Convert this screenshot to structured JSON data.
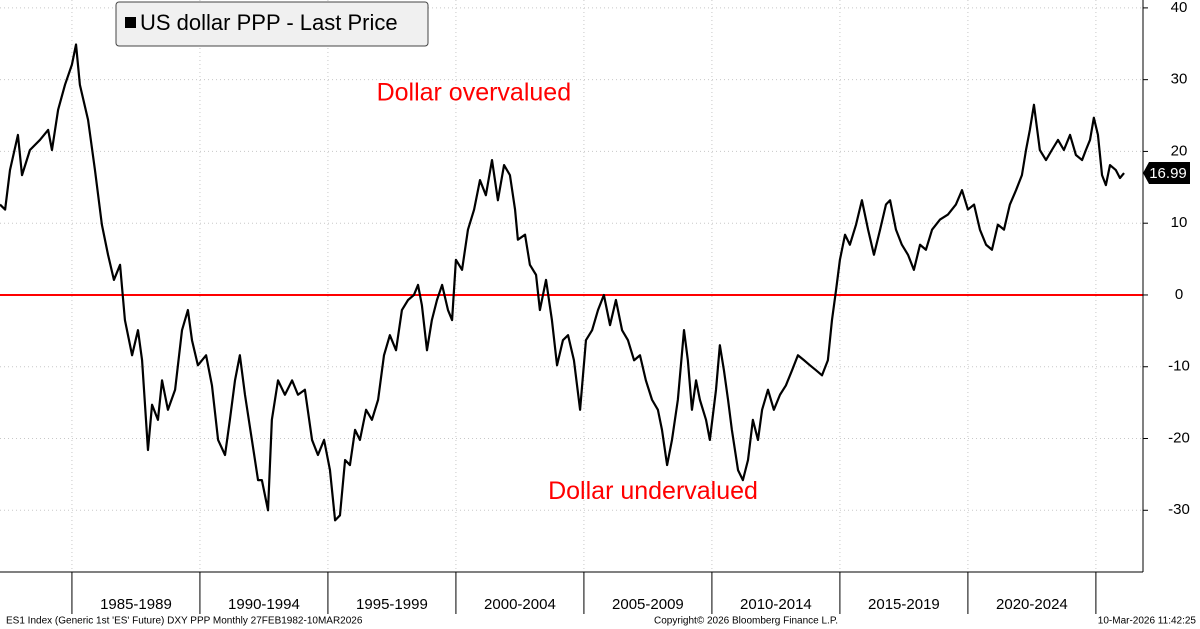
{
  "chart_data": {
    "type": "line",
    "legend_label": "US dollar PPP - Last Price",
    "annotations": [
      {
        "text": "Dollar overvalued",
        "x": 2000.7,
        "y": 28
      },
      {
        "text": "Dollar undervalued",
        "x": 2007.7,
        "y": -27.5
      }
    ],
    "annotation_color": "#ff0000",
    "reference_line": {
      "value": 0,
      "color": "#ff0000"
    },
    "footer": {
      "left": "ES1 Index (Generic 1st 'ES' Future) DXY PPP Monthly 27FEB1982-10MAR2026",
      "center": "Copyright© 2026 Bloomberg Finance L.P.",
      "right": "10-Mar-2026 11:42:25"
    },
    "xlim": [
      1982.19,
      2026.84
    ],
    "xticks": [
      {
        "value": 1985,
        "label": "1985-1989"
      },
      {
        "value": 1990,
        "label": "1990-1994"
      },
      {
        "value": 1995,
        "label": "1995-1999"
      },
      {
        "value": 2000,
        "label": "2000-2004"
      },
      {
        "value": 2005,
        "label": "2005-2009"
      },
      {
        "value": 2010,
        "label": "2010-2014"
      },
      {
        "value": 2015,
        "label": "2015-2019"
      },
      {
        "value": 2020,
        "label": "2020-2024"
      },
      {
        "value": 2025,
        "label": ""
      }
    ],
    "ylim": [
      -38.6,
      41.1
    ],
    "yticks": [
      -30,
      -20,
      -10,
      0,
      10,
      20,
      30,
      40
    ],
    "grid": true,
    "x": [
      1982.19,
      1982.39,
      1982.58,
      1982.89,
      1983.05,
      1983.36,
      1983.75,
      1984.07,
      1984.22,
      1984.46,
      1984.73,
      1985.0,
      1985.16,
      1985.31,
      1985.63,
      1985.9,
      1986.17,
      1986.41,
      1986.64,
      1986.88,
      1987.07,
      1987.35,
      1987.58,
      1987.74,
      1987.97,
      1988.13,
      1988.36,
      1988.52,
      1988.75,
      1989.03,
      1989.3,
      1989.53,
      1989.69,
      1989.92,
      1990.24,
      1990.47,
      1990.71,
      1990.98,
      1991.17,
      1991.37,
      1991.56,
      1991.76,
      1992.03,
      1992.27,
      1992.42,
      1992.66,
      1992.81,
      1993.05,
      1993.32,
      1993.6,
      1993.83,
      1994.1,
      1994.38,
      1994.61,
      1994.85,
      1995.08,
      1995.28,
      1995.47,
      1995.67,
      1995.86,
      1996.06,
      1996.25,
      1996.49,
      1996.72,
      1996.96,
      1997.19,
      1997.42,
      1997.66,
      1997.89,
      1998.13,
      1998.36,
      1998.52,
      1998.67,
      1998.87,
      1999.06,
      1999.26,
      1999.46,
      1999.69,
      1999.85,
      2000.0,
      2000.24,
      2000.47,
      2000.71,
      2000.94,
      2001.17,
      2001.41,
      2001.64,
      2001.88,
      2002.11,
      2002.31,
      2002.42,
      2002.7,
      2002.89,
      2003.13,
      2003.28,
      2003.52,
      2003.75,
      2003.95,
      2004.18,
      2004.38,
      2004.61,
      2004.85,
      2005.08,
      2005.32,
      2005.55,
      2005.78,
      2006.02,
      2006.25,
      2006.49,
      2006.72,
      2006.96,
      2007.19,
      2007.42,
      2007.66,
      2007.89,
      2008.05,
      2008.25,
      2008.44,
      2008.67,
      2008.91,
      2009.06,
      2009.22,
      2009.38,
      2009.53,
      2009.77,
      2009.92,
      2010.16,
      2010.31,
      2010.47,
      2010.63,
      2010.78,
      2011.02,
      2011.21,
      2011.41,
      2011.6,
      2011.8,
      2011.96,
      2012.19,
      2012.42,
      2012.66,
      2012.89,
      2013.13,
      2013.36,
      2013.6,
      2013.83,
      2014.07,
      2014.3,
      2014.53,
      2014.69,
      2014.85,
      2015.0,
      2015.2,
      2015.39,
      2015.63,
      2015.86,
      2016.1,
      2016.33,
      2016.57,
      2016.8,
      2016.96,
      2017.19,
      2017.42,
      2017.66,
      2017.89,
      2018.13,
      2018.36,
      2018.6,
      2018.91,
      2019.22,
      2019.53,
      2019.77,
      2020.0,
      2020.24,
      2020.47,
      2020.71,
      2020.94,
      2021.17,
      2021.41,
      2021.64,
      2021.88,
      2022.11,
      2022.27,
      2022.42,
      2022.58,
      2022.81,
      2023.05,
      2023.28,
      2023.52,
      2023.75,
      2023.99,
      2024.22,
      2024.46,
      2024.61,
      2024.77,
      2024.92,
      2025.08,
      2025.24,
      2025.39,
      2025.55,
      2025.78,
      2025.94,
      2026.1
    ],
    "series": [
      {
        "name": "US dollar PPP",
        "color": "#000000",
        "values": [
          12.6,
          11.9,
          17.4,
          22.3,
          16.7,
          20.2,
          21.6,
          23.0,
          20.2,
          25.8,
          29.3,
          32.1,
          34.9,
          29.3,
          24.4,
          17.4,
          9.8,
          5.6,
          2.1,
          4.2,
          -3.5,
          -8.4,
          -4.9,
          -9.1,
          -21.6,
          -15.3,
          -17.4,
          -11.9,
          -16.0,
          -13.2,
          -4.9,
          -2.1,
          -6.3,
          -9.8,
          -8.4,
          -12.6,
          -20.2,
          -22.3,
          -17.4,
          -11.9,
          -8.4,
          -13.9,
          -20.2,
          -25.8,
          -25.8,
          -30.0,
          -17.4,
          -11.9,
          -13.9,
          -11.9,
          -13.9,
          -13.2,
          -20.2,
          -22.3,
          -20.2,
          -24.4,
          -31.4,
          -30.7,
          -23.0,
          -23.7,
          -18.8,
          -20.2,
          -16.0,
          -17.4,
          -14.6,
          -8.4,
          -5.6,
          -7.7,
          -2.1,
          -0.7,
          0,
          1.4,
          -1.4,
          -7.7,
          -3.5,
          -0.7,
          1.4,
          -2.1,
          -3.5,
          4.9,
          3.5,
          9.1,
          11.9,
          16.0,
          13.9,
          18.8,
          13.2,
          18.1,
          16.7,
          11.9,
          7.7,
          8.4,
          4.2,
          2.8,
          -2.1,
          2.1,
          -3.5,
          -9.8,
          -6.3,
          -5.6,
          -9.1,
          -16.0,
          -6.3,
          -4.9,
          -2.1,
          0,
          -4.2,
          -0.7,
          -4.9,
          -6.3,
          -9.1,
          -8.4,
          -11.9,
          -14.6,
          -16.0,
          -18.8,
          -23.7,
          -20.2,
          -14.6,
          -4.9,
          -9.1,
          -16.0,
          -11.9,
          -14.6,
          -17.4,
          -20.2,
          -13.2,
          -7.0,
          -10.5,
          -14.6,
          -18.8,
          -24.4,
          -25.8,
          -23.0,
          -17.4,
          -20.2,
          -16.0,
          -13.2,
          -16.0,
          -13.9,
          -12.6,
          -10.5,
          -8.4,
          -9.1,
          -9.8,
          -10.5,
          -11.2,
          -9.1,
          -3.5,
          0.7,
          4.9,
          8.4,
          7.0,
          9.8,
          13.2,
          9.1,
          5.6,
          9.1,
          12.6,
          13.2,
          9.1,
          7.0,
          5.6,
          3.5,
          7.0,
          6.3,
          9.1,
          10.5,
          11.2,
          12.6,
          14.6,
          11.9,
          12.6,
          9.1,
          7.0,
          6.3,
          9.8,
          9.1,
          12.6,
          14.6,
          16.7,
          20.2,
          23.0,
          26.5,
          20.2,
          18.8,
          20.2,
          21.6,
          20.2,
          22.3,
          19.5,
          18.8,
          20.2,
          21.6,
          24.7,
          22.3,
          16.7,
          15.3,
          18.1,
          17.4,
          16.3,
          16.99
        ]
      }
    ]
  }
}
